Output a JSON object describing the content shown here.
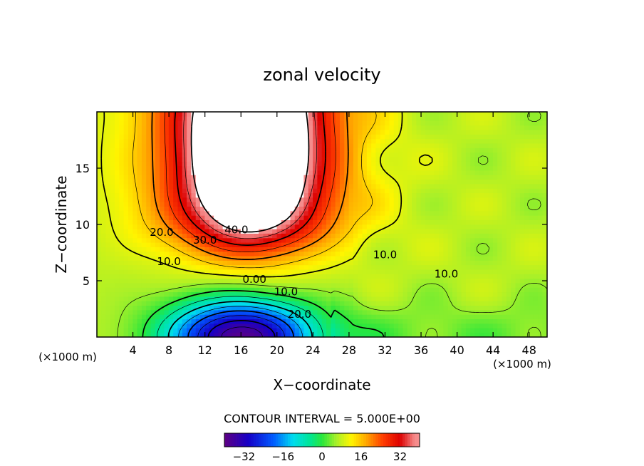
{
  "chart_data": {
    "type": "heatmap",
    "title": "zonal velocity",
    "xlabel": "X−coordinate",
    "ylabel": "Z−coordinate",
    "x_unit_left": "(×1000 m)",
    "x_unit_right": "(×1000 m)",
    "xlim": [
      0,
      50
    ],
    "ylim": [
      0,
      20
    ],
    "x_ticks": [
      4,
      8,
      12,
      16,
      20,
      24,
      28,
      32,
      36,
      40,
      44,
      48
    ],
    "y_ticks": [
      5,
      10,
      15
    ],
    "contour_interval_text": "CONTOUR INTERVAL = 5.000E+00",
    "contour_labels": [
      {
        "text": "40.0",
        "x": 15.5,
        "y": 9.2
      },
      {
        "text": "30.0",
        "x": 12.0,
        "y": 8.3
      },
      {
        "text": "20.0",
        "x": 7.2,
        "y": 9.0
      },
      {
        "text": "10.0",
        "x": 8.0,
        "y": 6.4
      },
      {
        "text": "0.00",
        "x": 17.5,
        "y": 4.8
      },
      {
        "text": "10.0",
        "x": 21.0,
        "y": 3.7
      },
      {
        "text": "20.0",
        "x": 22.5,
        "y": 1.7
      },
      {
        "text": "10.0",
        "x": 32.0,
        "y": 7.0
      },
      {
        "text": "10.0",
        "x": 38.8,
        "y": 5.3
      }
    ],
    "colorbar": {
      "min": -40,
      "max": 40,
      "ticks": [
        -32,
        -16,
        0,
        16,
        32
      ],
      "tick_labels": [
        "−32",
        "−16",
        "0",
        "16",
        "32"
      ]
    }
  }
}
